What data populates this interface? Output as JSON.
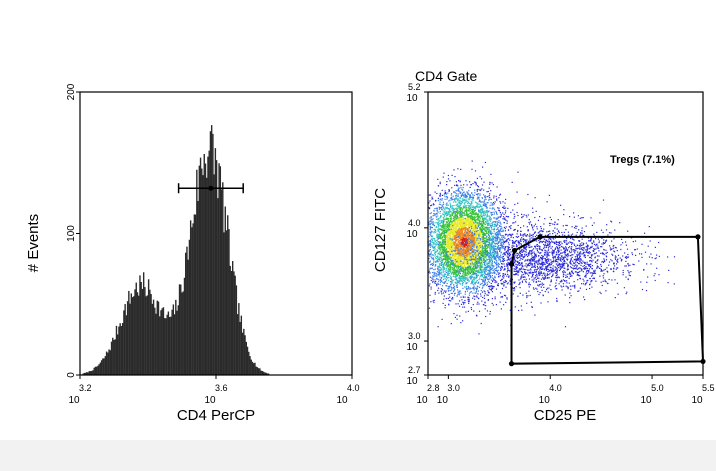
{
  "chart_data": [
    {
      "type": "histogram",
      "title": "",
      "xlabel": "CD4 PerCP",
      "ylabel": "# Events",
      "x_scale": "log",
      "xlim_exp": [
        3.2,
        4.0
      ],
      "ylim": [
        0,
        200
      ],
      "x_ticks": [
        {
          "base": "10",
          "exp": "3.2",
          "value_exp": 3.2
        },
        {
          "base": "10",
          "exp": "3.6",
          "value_exp": 3.6
        },
        {
          "base": "10",
          "exp": "4.0",
          "value_exp": 4.0
        }
      ],
      "y_ticks": [
        0,
        100,
        200
      ],
      "peaks": [
        {
          "x_exp": 3.38,
          "height": 65,
          "width_exp": 0.06
        },
        {
          "x_exp": 3.58,
          "height": 165,
          "width_exp": 0.055
        }
      ],
      "marker": {
        "x_start_exp": 3.49,
        "x_end_exp": 3.68,
        "center_exp": 3.585,
        "y": 132
      }
    },
    {
      "type": "scatter",
      "title": "CD4 Gate",
      "xlabel": "CD25 PE",
      "ylabel": "CD127 FITC",
      "x_scale": "log",
      "y_scale": "log",
      "xlim_exp": [
        2.8,
        5.5
      ],
      "ylim_exp": [
        2.7,
        5.2
      ],
      "x_ticks": [
        {
          "base": "10",
          "exp": "2.8",
          "value_exp": 2.8
        },
        {
          "base": "10",
          "exp": "3.0",
          "value_exp": 3.0
        },
        {
          "base": "10",
          "exp": "4.0",
          "value_exp": 4.0
        },
        {
          "base": "10",
          "exp": "5.0",
          "value_exp": 5.0
        },
        {
          "base": "10",
          "exp": "5.5",
          "value_exp": 5.5
        }
      ],
      "y_ticks": [
        {
          "base": "10",
          "exp": "2.7",
          "value_exp": 2.7
        },
        {
          "base": "10",
          "exp": "3.0",
          "value_exp": 3.0
        },
        {
          "base": "10",
          "exp": "4.0",
          "value_exp": 4.0
        },
        {
          "base": "10",
          "exp": "5.2",
          "value_exp": 5.2
        }
      ],
      "density_color_scale": [
        "#2b2bd9",
        "#3b7de8",
        "#2fc4c4",
        "#39c43a",
        "#e8e82a",
        "#f08a1e",
        "#e01818"
      ],
      "clusters": [
        {
          "x_exp": 3.15,
          "y_exp": 3.88,
          "sx": 0.18,
          "sy": 0.22,
          "n": 5200
        },
        {
          "x_exp": 3.7,
          "y_exp": 3.75,
          "sx": 0.45,
          "sy": 0.18,
          "n": 1800
        },
        {
          "x_exp": 4.2,
          "y_exp": 3.73,
          "sx": 0.35,
          "sy": 0.12,
          "n": 700
        }
      ],
      "gate": {
        "label": "Tregs (7.1%)",
        "vertices_exp": [
          [
            3.65,
            3.8
          ],
          [
            3.9,
            3.92
          ],
          [
            5.45,
            3.92
          ],
          [
            5.5,
            2.82
          ],
          [
            3.62,
            2.8
          ],
          [
            3.62,
            3.68
          ]
        ]
      }
    }
  ]
}
